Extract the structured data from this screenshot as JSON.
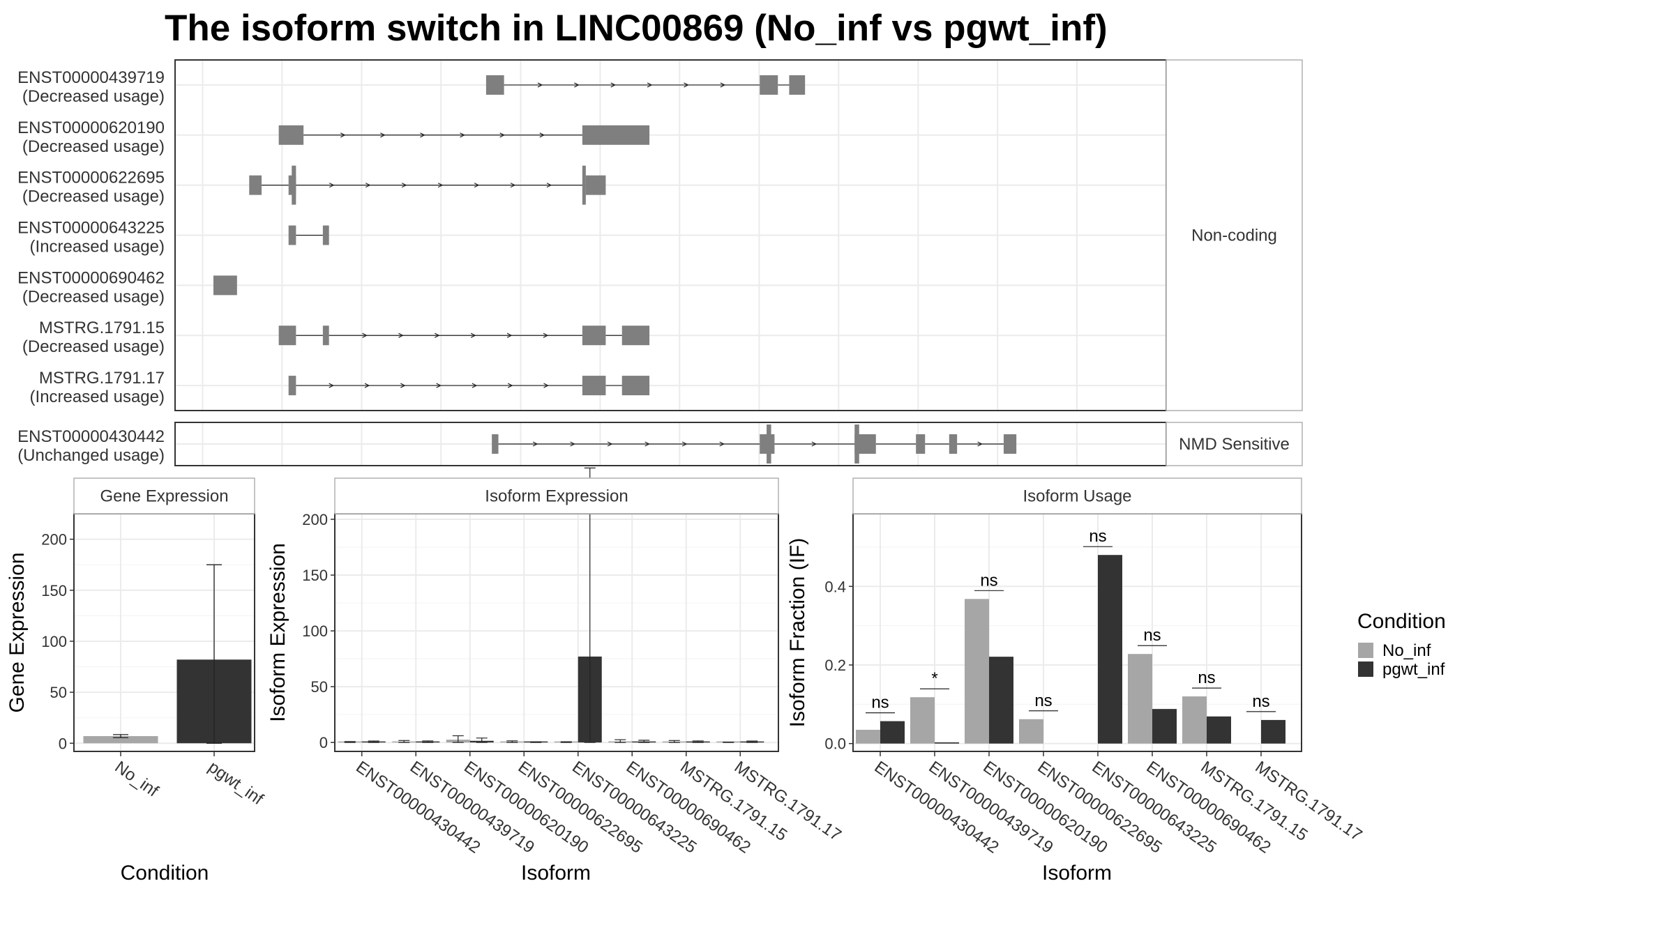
{
  "title": "The isoform switch in LINC00869 (No_inf vs pgwt_inf)",
  "colors": {
    "exon": "#7f7f7f",
    "no_inf": "#a6a6a6",
    "pgwt_inf": "#333333",
    "grid_major": "#ebebeb",
    "grid_minor": "#f5f5f5",
    "frame": "#333333",
    "text": "#333333"
  },
  "transcripts": {
    "groups": [
      {
        "label": "Non-coding",
        "items": [
          {
            "id": "ENST00000439719",
            "status": "(Decreased usage)",
            "exons": [
              [
                0.3138,
                0.3319
              ],
              [
                0.5899,
                0.6082
              ],
              [
                0.6196,
                0.6356
              ]
            ],
            "tall": []
          },
          {
            "id": "ENST00000620190",
            "status": "(Decreased usage)",
            "exons": [
              [
                0.1046,
                0.1296
              ],
              [
                0.4109,
                0.4786
              ]
            ],
            "tall": []
          },
          {
            "id": "ENST00000622695",
            "status": "(Decreased usage)",
            "exons": [
              [
                0.0748,
                0.0873
              ],
              [
                0.1145,
                0.122
              ],
              [
                0.4144,
                0.4345
              ]
            ],
            "tall": [
              [
                0.1177,
                0.122
              ],
              [
                0.4109,
                0.4144
              ]
            ]
          },
          {
            "id": "ENST00000643225",
            "status": "(Increased usage)",
            "exons": [
              [
                0.1145,
                0.122
              ],
              [
                0.1491,
                0.1553
              ]
            ],
            "tall": []
          },
          {
            "id": "ENST00000690462",
            "status": "(Decreased usage)",
            "exons": [
              [
                0.0387,
                0.0625
              ]
            ],
            "tall": []
          },
          {
            "id": "MSTRG.1791.15",
            "status": "(Decreased usage)",
            "exons": [
              [
                0.1046,
                0.122
              ],
              [
                0.1491,
                0.1553
              ],
              [
                0.4109,
                0.4345
              ],
              [
                0.4509,
                0.4786
              ]
            ],
            "tall": []
          },
          {
            "id": "MSTRG.1791.17",
            "status": "(Increased usage)",
            "exons": [
              [
                0.1145,
                0.122
              ],
              [
                0.4109,
                0.4345
              ],
              [
                0.4509,
                0.4786
              ]
            ],
            "tall": []
          }
        ]
      },
      {
        "label": "NMD Sensitive",
        "items": [
          {
            "id": "ENST00000430442",
            "status": "(Unchanged usage)",
            "exons": [
              [
                0.3196,
                0.3262
              ],
              [
                0.5899,
                0.6048
              ],
              [
                0.6856,
                0.7071
              ],
              [
                0.7475,
                0.7567
              ],
              [
                0.781,
                0.789
              ],
              [
                0.836,
                0.8488
              ]
            ],
            "tall": [
              [
                0.5968,
                0.6014
              ],
              [
                0.6856,
                0.6902
              ]
            ]
          }
        ]
      }
    ]
  },
  "chart_data": [
    {
      "type": "bar",
      "title": "Gene Expression",
      "xlabel": "Condition",
      "ylabel": "Gene Expression",
      "categories": [
        "No_inf",
        "pgwt_inf"
      ],
      "values": [
        7,
        82
      ],
      "error_upper": [
        8.5,
        175
      ],
      "error_lower": [
        5.5,
        0
      ],
      "ylim": [
        -8,
        225
      ],
      "yticks": [
        0,
        50,
        100,
        150,
        200
      ],
      "grid": true
    },
    {
      "type": "bar",
      "title": "Isoform Expression",
      "xlabel": "Isoform",
      "ylabel": "Isoform Expression",
      "categories": [
        "ENST00000430442",
        "ENST00000439719",
        "ENST00000620190",
        "ENST00000622695",
        "ENST00000643225",
        "ENST00000690462",
        "MSTRG.1791.15",
        "MSTRG.1791.17"
      ],
      "series": [
        {
          "name": "No_inf",
          "values": [
            0.3,
            0.8,
            2.5,
            0.5,
            0.3,
            1.0,
            0.8,
            0.1
          ],
          "err": [
            0.5,
            1.0,
            3.5,
            1.0,
            0.4,
            1.5,
            1.0,
            0.2
          ]
        },
        {
          "name": "pgwt_inf",
          "values": [
            0.5,
            0.6,
            1.5,
            0.2,
            77,
            0.8,
            0.6,
            0.5
          ],
          "err": [
            0.8,
            0.8,
            2.5,
            0.4,
            169,
            1.2,
            0.8,
            0.8
          ]
        }
      ],
      "ylim": [
        -8,
        205
      ],
      "yticks": [
        0,
        50,
        100,
        150,
        200
      ],
      "grid": true
    },
    {
      "type": "bar",
      "title": "Isoform Usage",
      "xlabel": "Isoform",
      "ylabel": "Isoform Fraction (IF)",
      "categories": [
        "ENST00000430442",
        "ENST00000439719",
        "ENST00000620190",
        "ENST00000622695",
        "ENST00000643225",
        "ENST00000690462",
        "MSTRG.1791.15",
        "MSTRG.1791.17"
      ],
      "series": [
        {
          "name": "No_inf",
          "values": [
            0.035,
            0.118,
            0.368,
            0.062,
            0.0,
            0.228,
            0.12,
            0.0
          ]
        },
        {
          "name": "pgwt_inf",
          "values": [
            0.057,
            0.003,
            0.221,
            0.0,
            0.48,
            0.088,
            0.069,
            0.06
          ]
        }
      ],
      "significance": [
        "ns",
        "*",
        "ns",
        "ns",
        "ns",
        "ns",
        "ns",
        "ns"
      ],
      "ylim": [
        -0.02,
        0.585
      ],
      "yticks": [
        "0.0",
        "0.2",
        "0.4"
      ],
      "grid": true
    }
  ],
  "legend": {
    "title": "Condition",
    "entries": [
      {
        "label": "No_inf"
      },
      {
        "label": "pgwt_inf"
      }
    ]
  }
}
